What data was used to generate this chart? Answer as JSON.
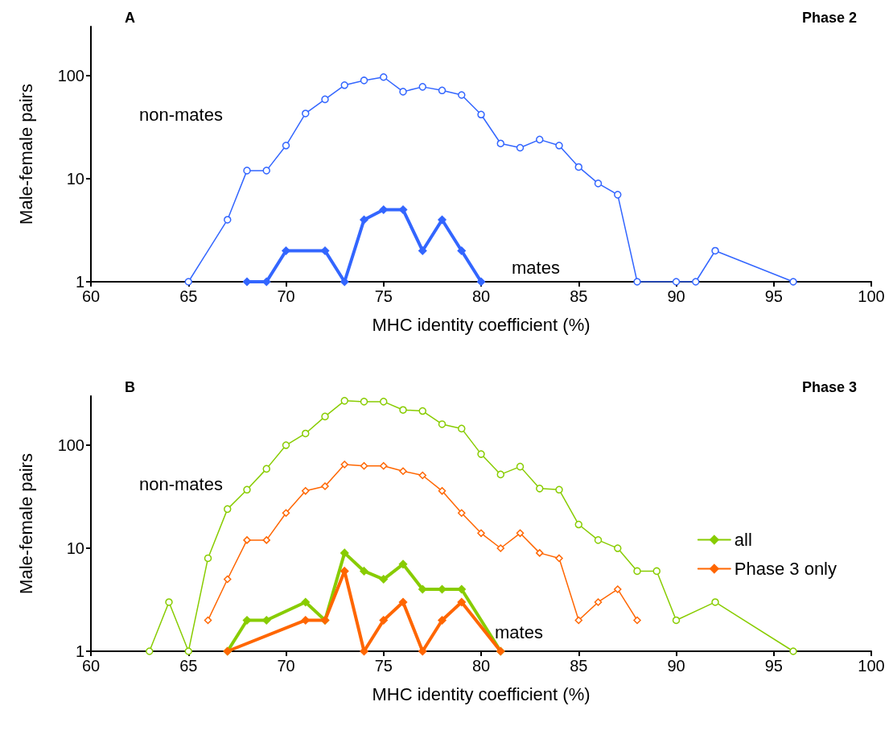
{
  "chart_data": [
    {
      "type": "line",
      "title": "A",
      "subtitle": "Phase 2",
      "xlabel": "MHC identity coefficient (%)",
      "ylabel": "Male-female pairs",
      "log": "y",
      "grid": false,
      "legend": false,
      "xlim": [
        60,
        100
      ],
      "xticks": [
        60,
        65,
        70,
        75,
        80,
        85,
        90,
        95,
        100
      ],
      "ylim": [
        1,
        300
      ],
      "yticks": [
        1,
        10,
        100
      ],
      "line_style": "solid",
      "annotations": [
        "non-mates"
      ],
      "series": [
        {
          "color": "#3366ff",
          "marker": "circle",
          "x": [
            65,
            67,
            68,
            69,
            70,
            71,
            72,
            73,
            74,
            75,
            76,
            77,
            78,
            79,
            80,
            81,
            82,
            83,
            84,
            85,
            86,
            87,
            88,
            90,
            91,
            92,
            96
          ],
          "values": [
            1,
            4,
            12,
            12,
            21,
            43,
            59,
            81,
            90,
            97,
            70,
            78,
            72,
            65,
            42,
            22,
            20,
            24,
            21,
            13,
            9,
            7,
            1,
            1,
            1,
            2,
            1
          ]
        },
        {
          "name": "mates",
          "color": "#3366ff",
          "marker": "diamond",
          "x": [
            68,
            69,
            70,
            72,
            73,
            74,
            75,
            76,
            77,
            78,
            79,
            80
          ],
          "values": [
            1,
            1,
            2,
            2,
            1,
            4,
            5,
            5,
            2,
            4,
            2,
            1
          ]
        }
      ]
    },
    {
      "type": "line",
      "title": "B",
      "subtitle": "Phase 3",
      "xlabel": "MHC identity coefficient (%)",
      "ylabel": "Male-female pairs",
      "log": "y",
      "grid": false,
      "legend": "right",
      "xlim": [
        60,
        100
      ],
      "xticks": [
        60,
        65,
        70,
        75,
        80,
        85,
        90,
        95,
        100
      ],
      "ylim": [
        1,
        300
      ],
      "yticks": [
        1,
        10,
        100
      ],
      "line_style": "solid",
      "annotations": [
        "non-mates",
        "mates"
      ],
      "series": [
        {
          "color": "#88cc00",
          "marker": "circle",
          "x": [
            63,
            64,
            65,
            66,
            67,
            68,
            69,
            70,
            71,
            72,
            73,
            74,
            75,
            76,
            77,
            78,
            79,
            80,
            81,
            82,
            83,
            84,
            85,
            86,
            87,
            88,
            89,
            90,
            92,
            96
          ],
          "values": [
            1,
            3,
            1,
            8,
            24,
            37,
            59,
            100,
            130,
            190,
            270,
            265,
            265,
            220,
            215,
            160,
            145,
            82,
            52,
            62,
            38,
            37,
            17,
            12,
            10,
            6,
            6,
            2,
            3,
            1
          ]
        },
        {
          "color": "#ff6600",
          "marker": "diamond",
          "x": [
            66,
            67,
            68,
            69,
            70,
            71,
            72,
            73,
            74,
            75,
            76,
            77,
            78,
            79,
            80,
            81,
            82,
            83,
            84,
            85,
            86,
            87,
            88
          ],
          "values": [
            2,
            5,
            12,
            12,
            22,
            36,
            40,
            65,
            63,
            63,
            56,
            51,
            36,
            22,
            14,
            10,
            14,
            9,
            8,
            2,
            3,
            4,
            2
          ]
        },
        {
          "name": "all",
          "color": "#88cc00",
          "marker": "diamond",
          "x": [
            67,
            68,
            69,
            71,
            72,
            73,
            74,
            75,
            76,
            77,
            78,
            79,
            81
          ],
          "values": [
            1,
            2,
            2,
            3,
            2,
            9,
            6,
            5,
            7,
            4,
            4,
            4,
            1
          ]
        },
        {
          "name": "Phase 3 only",
          "color": "#ff6600",
          "marker": "diamond",
          "x": [
            67,
            71,
            72,
            73,
            74,
            75,
            76,
            77,
            78,
            79,
            81
          ],
          "values": [
            1,
            2,
            2,
            6,
            1,
            2,
            3,
            1,
            2,
            3,
            1
          ]
        }
      ]
    }
  ]
}
